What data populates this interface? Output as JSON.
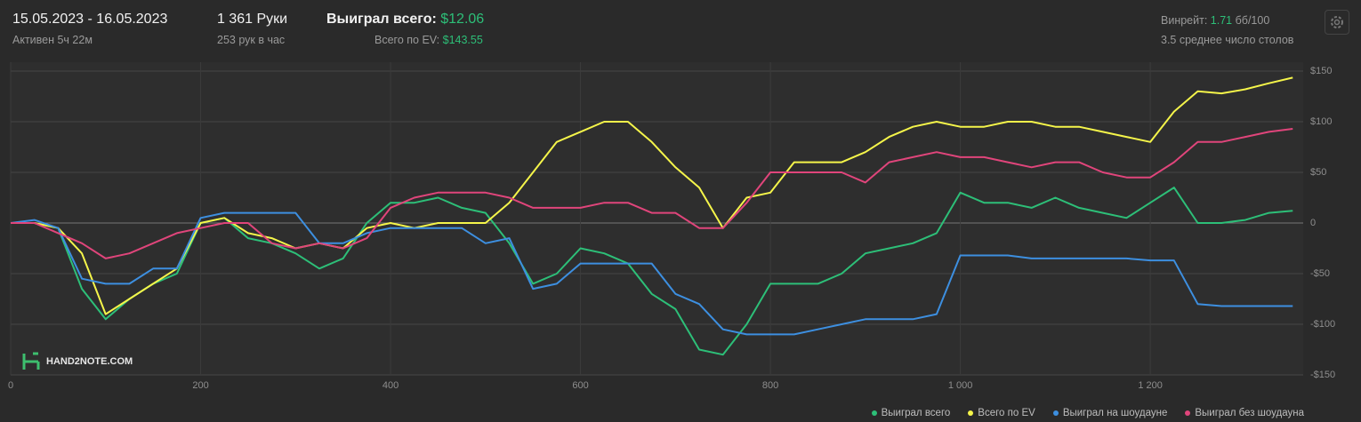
{
  "header": {
    "date_range": "15.05.2023 - 16.05.2023",
    "active": "Активен 5ч 22м",
    "hands": "1 361 Руки",
    "hands_per_hour": "253 рук в час",
    "won_label": "Выиграл всего:",
    "won_value": "$12.06",
    "ev_label": "Всего по EV:",
    "ev_value": "$143.55",
    "winrate_label": "Винрейт:",
    "winrate_value": "1.71",
    "winrate_unit": "бб/100",
    "tables": "3.5 среднее число столов",
    "logo": "HAND2NOTE.COM"
  },
  "chart_data": {
    "type": "line",
    "x": [
      0,
      25,
      50,
      75,
      100,
      125,
      150,
      175,
      200,
      225,
      250,
      275,
      300,
      325,
      350,
      375,
      400,
      425,
      450,
      475,
      500,
      525,
      550,
      575,
      600,
      625,
      650,
      675,
      700,
      725,
      750,
      775,
      800,
      825,
      850,
      875,
      900,
      925,
      950,
      975,
      1000,
      1025,
      1050,
      1075,
      1100,
      1125,
      1150,
      1175,
      1200,
      1225,
      1250,
      1275,
      1300,
      1325,
      1350
    ],
    "xlim": [
      0,
      1361
    ],
    "xticks": [
      0,
      200,
      400,
      600,
      800,
      {
        "value": 1000,
        "label": "1 000"
      },
      {
        "value": 1200,
        "label": "1 200"
      }
    ],
    "ylim": [
      -150,
      150
    ],
    "yticks": [
      {
        "value": 150,
        "label": "$150"
      },
      {
        "value": 100,
        "label": "$100"
      },
      {
        "value": 50,
        "label": "$50"
      },
      0,
      {
        "value": -50,
        "label": "-$50"
      },
      {
        "value": -100,
        "label": "-$100"
      },
      {
        "value": -150,
        "label": "-$150"
      }
    ],
    "grid": true,
    "series": [
      {
        "name": "Выиграл всего",
        "color": "#2dbf78",
        "values": [
          0,
          0,
          -5,
          -65,
          -95,
          -75,
          -60,
          -50,
          0,
          5,
          -15,
          -20,
          -30,
          -45,
          -35,
          0,
          20,
          20,
          25,
          15,
          10,
          -20,
          -60,
          -50,
          -25,
          -30,
          -40,
          -70,
          -85,
          -125,
          -130,
          -100,
          -60,
          -60,
          -60,
          -50,
          -30,
          -25,
          -20,
          -10,
          30,
          20,
          20,
          15,
          25,
          15,
          10,
          5,
          20,
          35,
          0,
          0,
          3,
          10,
          12.06
        ]
      },
      {
        "name": "Всего по EV",
        "color": "#f5f54a",
        "values": [
          0,
          0,
          -5,
          -30,
          -90,
          -75,
          -60,
          -45,
          0,
          5,
          -10,
          -15,
          -25,
          -20,
          -25,
          -5,
          0,
          -5,
          0,
          0,
          0,
          20,
          50,
          80,
          90,
          100,
          100,
          80,
          55,
          35,
          -5,
          25,
          30,
          60,
          60,
          60,
          70,
          85,
          95,
          100,
          95,
          95,
          100,
          100,
          95,
          95,
          90,
          85,
          80,
          110,
          130,
          128,
          132,
          138,
          143.55
        ]
      },
      {
        "name": "Выиграл на шоудауне",
        "color": "#3d8fe0",
        "values": [
          0,
          3,
          -5,
          -55,
          -60,
          -60,
          -45,
          -45,
          5,
          10,
          10,
          10,
          10,
          -20,
          -20,
          -10,
          -5,
          -5,
          -5,
          -5,
          -20,
          -15,
          -65,
          -60,
          -40,
          -40,
          -40,
          -40,
          -70,
          -80,
          -105,
          -110,
          -110,
          -110,
          -105,
          -100,
          -95,
          -95,
          -95,
          -90,
          -32,
          -32,
          -32,
          -35,
          -35,
          -35,
          -35,
          -35,
          -37,
          -37,
          -80,
          -82,
          -82,
          -82,
          -82
        ]
      },
      {
        "name": "Выиграл без шоудауна",
        "color": "#e0457b",
        "values": [
          0,
          0,
          -10,
          -20,
          -35,
          -30,
          -20,
          -10,
          -5,
          0,
          0,
          -20,
          -25,
          -20,
          -25,
          -15,
          15,
          25,
          30,
          30,
          30,
          25,
          15,
          15,
          15,
          20,
          20,
          10,
          10,
          -5,
          -5,
          20,
          50,
          50,
          50,
          50,
          40,
          60,
          65,
          70,
          65,
          65,
          60,
          55,
          60,
          60,
          50,
          45,
          45,
          60,
          80,
          80,
          85,
          90,
          93
        ]
      }
    ]
  }
}
